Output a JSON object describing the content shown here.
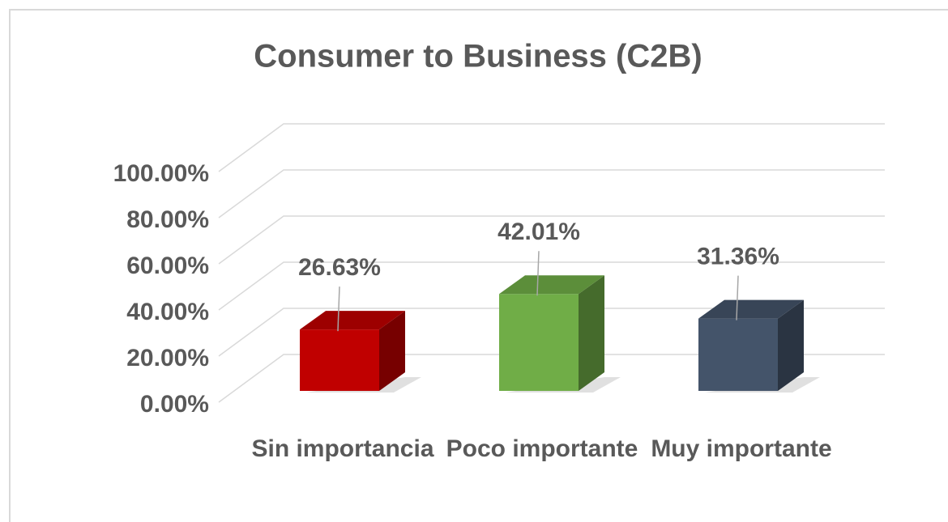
{
  "chart_data": {
    "type": "bar3d",
    "title": "Consumer to Business (C2B)",
    "categories": [
      "Sin importancia",
      "Poco importante",
      "Muy importante"
    ],
    "values": [
      26.63,
      42.01,
      31.36
    ],
    "value_labels": [
      "26.63%",
      "42.01%",
      "31.36%"
    ],
    "colors": [
      "#c00000",
      "#70ad47",
      "#44546a"
    ],
    "ylim": [
      0,
      100
    ],
    "yticks": [
      {
        "value": 0,
        "label": "0.00%"
      },
      {
        "value": 20,
        "label": "20.00%"
      },
      {
        "value": 40,
        "label": "40.00%"
      },
      {
        "value": 60,
        "label": "60.00%"
      },
      {
        "value": 80,
        "label": "80.00%"
      },
      {
        "value": 100,
        "label": "100.00%"
      }
    ],
    "grid": true
  }
}
